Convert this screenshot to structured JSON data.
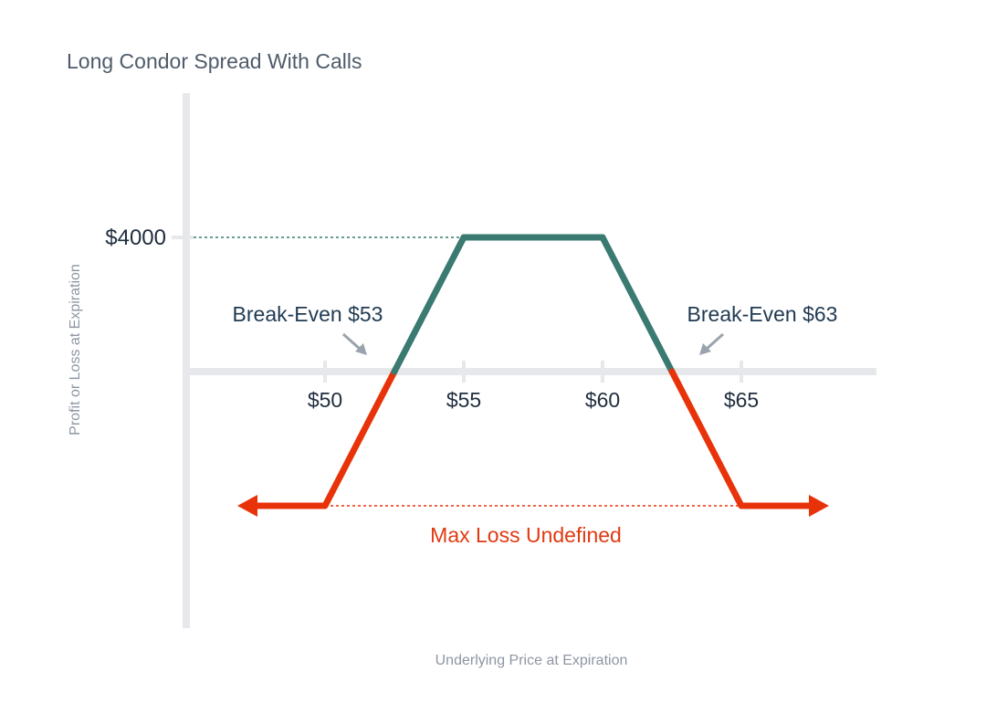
{
  "chart_data": {
    "type": "line",
    "title": "Long Condor Spread With Calls",
    "xlabel": "Underlying Price at Expiration",
    "ylabel": "Profit or Loss at Expiration",
    "x_ticks": [
      {
        "value": 50,
        "label": "$50"
      },
      {
        "value": 55,
        "label": "$55"
      },
      {
        "value": 60,
        "label": "$60"
      },
      {
        "value": 65,
        "label": "$65"
      }
    ],
    "y_ticks": [
      {
        "value": 4000,
        "label": "$4000"
      }
    ],
    "payoff": [
      {
        "x": 50,
        "y": -4000
      },
      {
        "x": 52.5,
        "y": 0
      },
      {
        "x": 55,
        "y": 4000
      },
      {
        "x": 60,
        "y": 4000
      },
      {
        "x": 62.5,
        "y": 0
      },
      {
        "x": 65,
        "y": -4000
      }
    ],
    "break_even_left": {
      "x": 52.5,
      "label": "Break-Even $53"
    },
    "break_even_right": {
      "x": 62.5,
      "label": "Break-Even $63"
    },
    "max_profit": 4000,
    "max_loss": {
      "value": -4000,
      "label": "Max Loss Undefined"
    },
    "colors": {
      "profit": "#3a7a70",
      "loss": "#e8330a",
      "axis": "#e7e8ec",
      "arrow": "#9aa3ad"
    }
  }
}
